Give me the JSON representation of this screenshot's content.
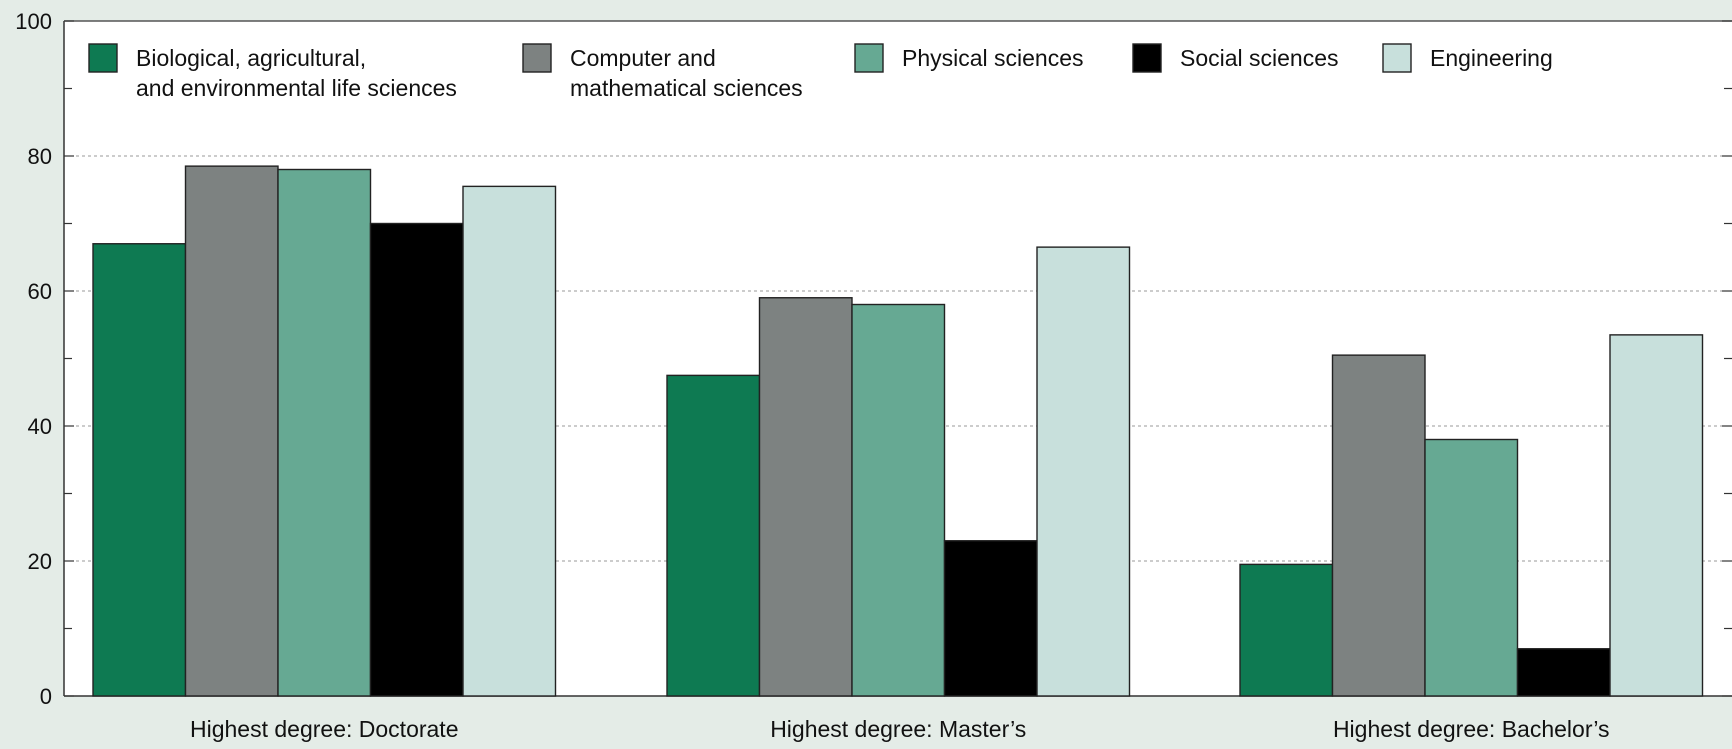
{
  "chart_data": {
    "type": "bar",
    "categories": [
      "Highest degree: Doctorate",
      "Highest degree: Master’s",
      "Highest degree: Bachelor’s"
    ],
    "series": [
      {
        "name": "Biological, agricultural,\nand environmental life sciences",
        "color": "#0e7a52",
        "values": [
          67,
          47.5,
          19.5
        ]
      },
      {
        "name": "Computer and\nmathematical sciences",
        "color": "#7d8281",
        "values": [
          78.5,
          59,
          50.5
        ]
      },
      {
        "name": "Physical sciences",
        "color": "#66a993",
        "values": [
          78,
          58,
          38
        ]
      },
      {
        "name": "Social sciences",
        "color": "#000000",
        "values": [
          70,
          23,
          7
        ]
      },
      {
        "name": "Engineering",
        "color": "#c8e0dc",
        "values": [
          75.5,
          66.5,
          53.5
        ]
      }
    ],
    "ylim": [
      0,
      100
    ],
    "yticks": [
      0,
      20,
      40,
      60,
      80,
      100
    ],
    "grid": true,
    "legend": "top",
    "title": "",
    "xlabel": "",
    "ylabel": ""
  }
}
